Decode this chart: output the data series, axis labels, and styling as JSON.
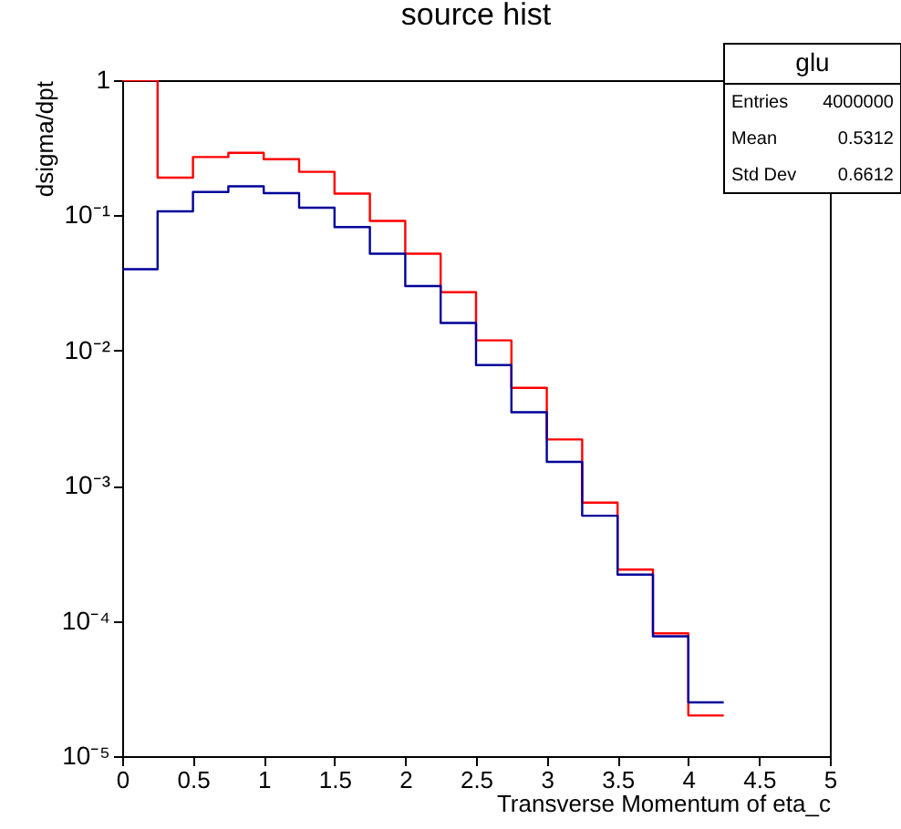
{
  "chart_data": {
    "type": "histogram",
    "title": "source hist",
    "xlabel": "Transverse Momentum of eta_c",
    "ylabel": "dsigma/dpt",
    "bins": [
      0,
      0.25,
      0.5,
      0.75,
      1,
      1.25,
      1.5,
      1.75,
      2,
      2.25,
      2.5,
      2.75,
      3,
      3.25,
      3.5,
      3.75,
      4,
      4.25
    ],
    "series": [
      {
        "color": "#ff0000",
        "values": [
          1,
          0.19,
          0.27,
          0.29,
          0.26,
          0.21,
          0.145,
          0.091,
          0.052,
          0.027,
          0.0119,
          0.0053,
          0.0022,
          0.00075,
          0.00024,
          8.1e-05,
          2e-05
        ]
      },
      {
        "color": "#000099",
        "values": [
          0.04,
          0.107,
          0.149,
          0.164,
          0.146,
          0.114,
          0.082,
          0.052,
          0.03,
          0.016,
          0.0078,
          0.0035,
          0.0015,
          0.0006,
          0.00022,
          7.7e-05,
          2.5e-05
        ]
      }
    ],
    "log": true,
    "grid": false,
    "xlim": [
      0,
      5
    ],
    "xticks": [
      0,
      0.5,
      1,
      1.5,
      2,
      2.5,
      3,
      3.5,
      4,
      4.5,
      5
    ],
    "ylim": [
      1e-05,
      1
    ],
    "yticks": [
      {
        "value": 1e-05,
        "label": "10⁻⁵"
      },
      {
        "value": 0.0001,
        "label": "10⁻⁴"
      },
      {
        "value": 0.001,
        "label": "10⁻³"
      },
      {
        "value": 0.01,
        "label": "10⁻²"
      },
      {
        "value": 0.1,
        "label": "10⁻¹"
      },
      {
        "value": 1,
        "label": "1"
      }
    ],
    "annotations": [
      "glu",
      "Entries",
      "4000000",
      "Mean",
      "0.5312",
      "Std Dev",
      "0.6612"
    ]
  }
}
